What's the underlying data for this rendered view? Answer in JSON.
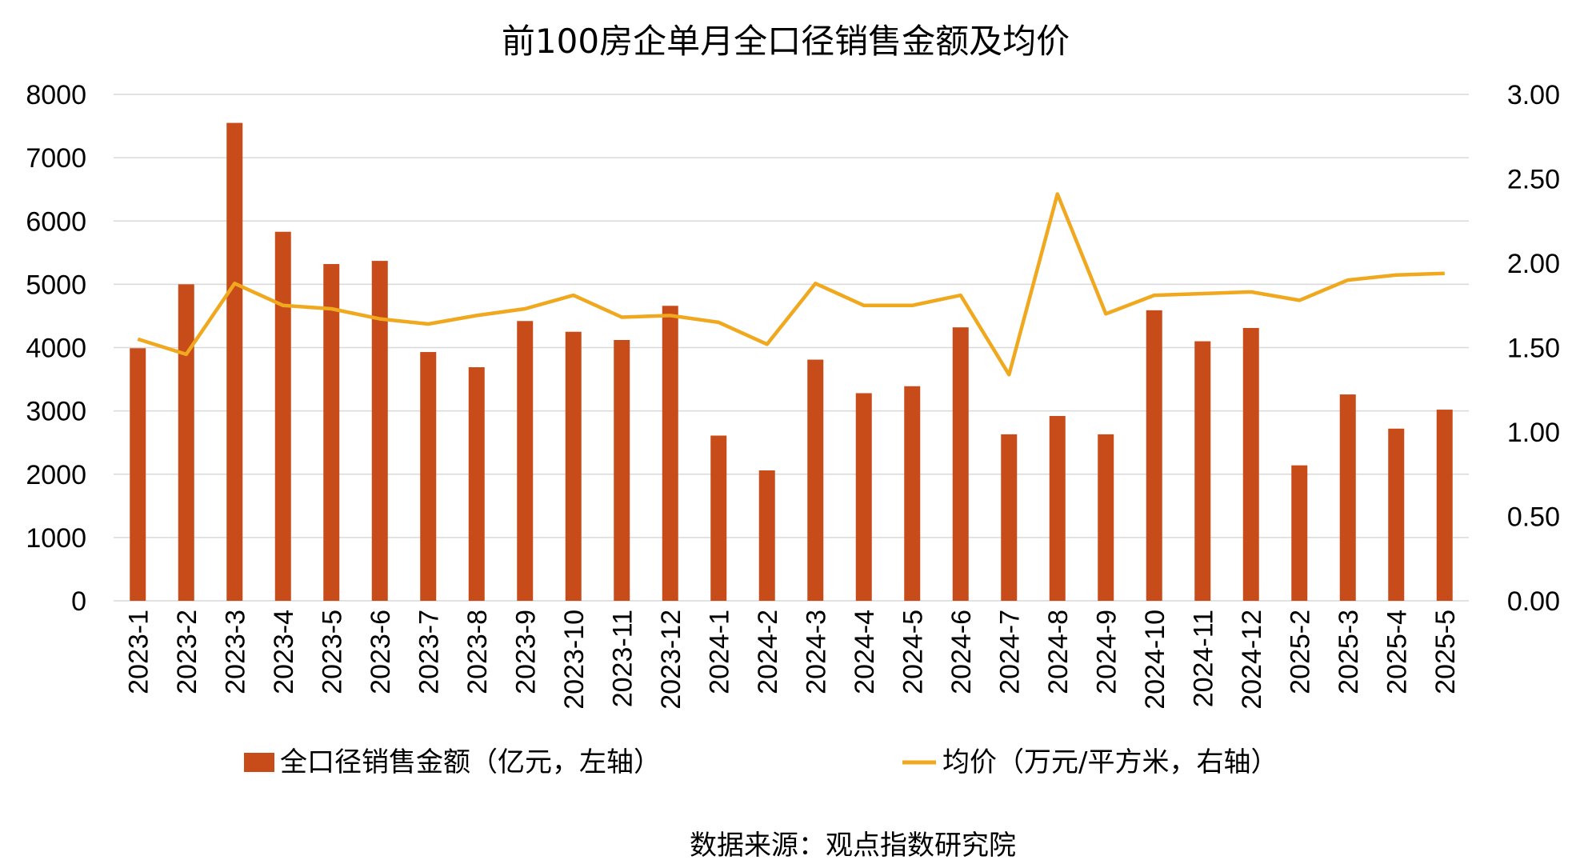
{
  "chart_data": {
    "type": "bar+line",
    "title": "前100房企单月全口径销售金额及均价",
    "categories": [
      "2023-1",
      "2023-2",
      "2023-3",
      "2023-4",
      "2023-5",
      "2023-6",
      "2023-7",
      "2023-8",
      "2023-9",
      "2023-10",
      "2023-11",
      "2023-12",
      "2024-1",
      "2024-2",
      "2024-3",
      "2024-4",
      "2024-5",
      "2024-6",
      "2024-7",
      "2024-8",
      "2024-9",
      "2024-10",
      "2024-11",
      "2024-12",
      "2025-2",
      "2025-3",
      "2025-4",
      "2025-5"
    ],
    "series": [
      {
        "name": "全口径销售金额（亿元，左轴）",
        "type": "bar",
        "axis": "left",
        "color": "#C84C1A",
        "values": [
          3990,
          5000,
          7550,
          5830,
          5320,
          5370,
          3930,
          3690,
          4420,
          4250,
          4120,
          4660,
          2610,
          2060,
          3810,
          3280,
          3390,
          4320,
          2630,
          2920,
          2630,
          4590,
          4100,
          4310,
          2140,
          3260,
          2720,
          3020
        ]
      },
      {
        "name": "均价（万元/平方米，右轴）",
        "type": "line",
        "axis": "right",
        "color": "#F0A81E",
        "values": [
          1.55,
          1.46,
          1.88,
          1.75,
          1.73,
          1.67,
          1.64,
          1.69,
          1.73,
          1.81,
          1.68,
          1.69,
          1.65,
          1.52,
          1.88,
          1.75,
          1.75,
          1.81,
          1.34,
          2.41,
          1.7,
          1.81,
          1.82,
          1.83,
          1.78,
          1.9,
          1.93,
          1.94
        ]
      }
    ],
    "y_left": {
      "min": 0,
      "max": 8000,
      "ticks": [
        "0",
        "1000",
        "2000",
        "3000",
        "4000",
        "5000",
        "6000",
        "7000",
        "8000"
      ]
    },
    "y_right": {
      "min": 0,
      "max": 3,
      "ticks": [
        "0.00",
        "0.50",
        "1.00",
        "1.50",
        "2.00",
        "2.50",
        "3.00"
      ]
    },
    "grid": true,
    "legend_position": "bottom",
    "source": "数据来源：观点指数研究院"
  }
}
